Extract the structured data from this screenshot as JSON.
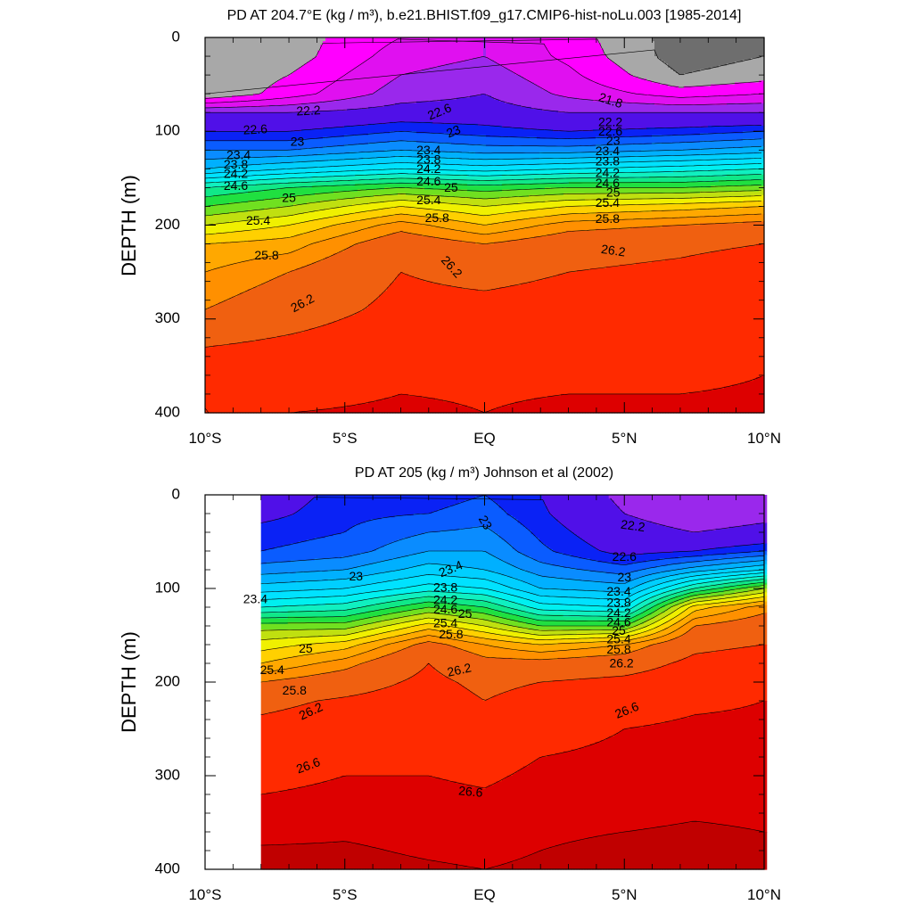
{
  "chart_data": [
    {
      "type": "heatmap",
      "title": "PD AT 204.7°E (kg / m³), b.e21.BHIST.f09_g17.CMIP6-hist-noLu.003 [1985-2014]",
      "ylabel": "DEPTH (m)",
      "xlabel": "",
      "x_ticks": [
        "10°S",
        "5°S",
        "EQ",
        "5°N",
        "10°N"
      ],
      "y_ticks": [
        "0",
        "100",
        "200",
        "300",
        "400"
      ],
      "xlim": [
        -10,
        10
      ],
      "ylim": [
        400,
        0
      ],
      "grid": false,
      "data_xrange": [
        -10,
        10
      ],
      "sections": [
        {
          "lat": -10,
          "depths": [
            0,
            20,
            40,
            60,
            80,
            100,
            120,
            140,
            160,
            180,
            200,
            220,
            250,
            290,
            330,
            395,
            400
          ],
          "values": [
            20.6,
            20.6,
            20.6,
            20.6,
            22.2,
            22.6,
            23.0,
            23.4,
            24.2,
            24.6,
            25.0,
            25.4,
            25.6,
            25.8,
            26.2,
            26.6,
            26.6
          ]
        },
        {
          "lat": -7,
          "depths": [
            0,
            20,
            40,
            60,
            80,
            100,
            120,
            140,
            160,
            180,
            200,
            220,
            250,
            290,
            330,
            380,
            400
          ],
          "values": [
            20.8,
            20.8,
            21.0,
            21.2,
            22.2,
            22.6,
            23.0,
            23.6,
            24.4,
            24.8,
            25.2,
            25.5,
            25.8,
            26.0,
            26.3,
            26.5,
            26.6
          ]
        },
        {
          "lat": -3,
          "depths": [
            0,
            20,
            40,
            60,
            80,
            100,
            120,
            140,
            160,
            180,
            200,
            220,
            250,
            290,
            330,
            360,
            400
          ],
          "values": [
            21.4,
            21.6,
            21.8,
            22.0,
            22.4,
            22.8,
            23.2,
            23.8,
            24.6,
            25.2,
            25.7,
            26.0,
            26.2,
            26.3,
            26.45,
            26.55,
            26.65
          ]
        },
        {
          "lat": 0,
          "depths": [
            0,
            20,
            40,
            60,
            80,
            100,
            120,
            140,
            160,
            180,
            200,
            220,
            250,
            290,
            330,
            360,
            400
          ],
          "values": [
            21.8,
            21.8,
            22.0,
            22.2,
            22.4,
            22.7,
            23.1,
            23.7,
            24.5,
            25.0,
            25.4,
            25.8,
            26.1,
            26.3,
            26.45,
            26.55,
            26.6
          ]
        },
        {
          "lat": 3,
          "depths": [
            0,
            20,
            40,
            60,
            80,
            100,
            120,
            140,
            160,
            180,
            200,
            220,
            250,
            290,
            330,
            360,
            400
          ],
          "values": [
            21.2,
            21.3,
            21.5,
            21.7,
            22.2,
            22.6,
            23.1,
            23.8,
            24.6,
            25.2,
            25.7,
            26.0,
            26.2,
            26.35,
            26.5,
            26.55,
            26.65
          ]
        },
        {
          "lat": 7,
          "depths": [
            0,
            20,
            40,
            60,
            80,
            100,
            120,
            140,
            160,
            180,
            200,
            220,
            250,
            290,
            330,
            360,
            400
          ],
          "values": [
            20.4,
            20.4,
            20.6,
            21.2,
            22.2,
            22.7,
            23.2,
            23.9,
            24.6,
            25.3,
            25.8,
            26.1,
            26.3,
            26.4,
            26.5,
            26.55,
            26.65
          ]
        },
        {
          "lat": 10,
          "depths": [
            0,
            20,
            40,
            60,
            80,
            100,
            120,
            140,
            160,
            180,
            200,
            220,
            250,
            290,
            330,
            360,
            400
          ],
          "values": [
            20.6,
            20.6,
            20.8,
            21.4,
            22.2,
            22.8,
            23.3,
            24.0,
            24.7,
            25.4,
            25.9,
            26.2,
            26.45,
            26.5,
            26.55,
            26.6,
            26.65
          ]
        }
      ],
      "contour_labels": [
        {
          "text": "22.2",
          "lat": -6.3,
          "depth": 79,
          "angle": -3
        },
        {
          "text": "22.6",
          "lat": -8.2,
          "depth": 99,
          "angle": -3
        },
        {
          "text": "23",
          "lat": -6.7,
          "depth": 112,
          "angle": 0
        },
        {
          "text": "23.4",
          "lat": -8.8,
          "depth": 126,
          "angle": 0
        },
        {
          "text": "23.8",
          "lat": -8.9,
          "depth": 136,
          "angle": 0
        },
        {
          "text": "24.2",
          "lat": -8.9,
          "depth": 146,
          "angle": 0
        },
        {
          "text": "24.6",
          "lat": -8.9,
          "depth": 159,
          "angle": 0
        },
        {
          "text": "25",
          "lat": -7.0,
          "depth": 172,
          "angle": 0
        },
        {
          "text": "25.4",
          "lat": -8.1,
          "depth": 196,
          "angle": 0
        },
        {
          "text": "25.8",
          "lat": -7.8,
          "depth": 233,
          "angle": 0
        },
        {
          "text": "26.2",
          "lat": -6.5,
          "depth": 284,
          "angle": -28
        },
        {
          "text": "22.6",
          "lat": -1.6,
          "depth": 80,
          "angle": -22
        },
        {
          "text": "23",
          "lat": -1.1,
          "depth": 101,
          "angle": -22
        },
        {
          "text": "23.4",
          "lat": -2.0,
          "depth": 121,
          "angle": 0
        },
        {
          "text": "23.8",
          "lat": -2.0,
          "depth": 131,
          "angle": 0
        },
        {
          "text": "24.2",
          "lat": -2.0,
          "depth": 141,
          "angle": 0
        },
        {
          "text": "24.6",
          "lat": -2.0,
          "depth": 154,
          "angle": 0
        },
        {
          "text": "25",
          "lat": -1.2,
          "depth": 161,
          "angle": 0
        },
        {
          "text": "25.4",
          "lat": -2.0,
          "depth": 174,
          "angle": 0
        },
        {
          "text": "25.8",
          "lat": -1.7,
          "depth": 193,
          "angle": 0
        },
        {
          "text": "26.2",
          "lat": -1.2,
          "depth": 245,
          "angle": 48
        },
        {
          "text": "21.8",
          "lat": 4.5,
          "depth": 68,
          "angle": 18
        },
        {
          "text": "22.2",
          "lat": 4.5,
          "depth": 91,
          "angle": 0
        },
        {
          "text": "22.6",
          "lat": 4.5,
          "depth": 101,
          "angle": 0
        },
        {
          "text": "23",
          "lat": 4.6,
          "depth": 111,
          "angle": 0
        },
        {
          "text": "23.4",
          "lat": 4.4,
          "depth": 122,
          "angle": 0
        },
        {
          "text": "23.8",
          "lat": 4.4,
          "depth": 133,
          "angle": 0
        },
        {
          "text": "24.2",
          "lat": 4.4,
          "depth": 145,
          "angle": 0
        },
        {
          "text": "24.6",
          "lat": 4.4,
          "depth": 156,
          "angle": 0
        },
        {
          "text": "25",
          "lat": 4.6,
          "depth": 166,
          "angle": 0
        },
        {
          "text": "25.4",
          "lat": 4.4,
          "depth": 177,
          "angle": 0
        },
        {
          "text": "25.8",
          "lat": 4.4,
          "depth": 194,
          "angle": 0
        },
        {
          "text": "26.2",
          "lat": 4.6,
          "depth": 228,
          "angle": 8
        }
      ]
    },
    {
      "type": "heatmap",
      "title": "PD AT 205 (kg / m³) Johnson et al (2002)",
      "ylabel": "DEPTH (m)",
      "xlabel": "",
      "x_ticks": [
        "10°S",
        "5°S",
        "EQ",
        "5°N",
        "10°N"
      ],
      "y_ticks": [
        "0",
        "100",
        "200",
        "300",
        "400"
      ],
      "xlim": [
        -10,
        10
      ],
      "ylim": [
        400,
        0
      ],
      "grid": false,
      "data_xrange": [
        -8,
        10
      ],
      "sections": [
        {
          "lat": -8,
          "depths": [
            0,
            20,
            40,
            60,
            80,
            100,
            120,
            140,
            160,
            180,
            200,
            220,
            250,
            280,
            320,
            360,
            380,
            400
          ],
          "values": [
            22.4,
            22.5,
            22.7,
            22.8,
            23.1,
            23.5,
            24.0,
            24.7,
            25.1,
            25.4,
            25.8,
            26.1,
            26.3,
            26.45,
            26.6,
            26.75,
            26.82,
            26.85
          ]
        },
        {
          "lat": -5,
          "depths": [
            0,
            20,
            40,
            60,
            80,
            100,
            120,
            140,
            160,
            180,
            200,
            220,
            250,
            280,
            320,
            360,
            380,
            400
          ],
          "values": [
            22.7,
            22.75,
            22.8,
            22.9,
            23.2,
            23.6,
            24.1,
            24.7,
            25.3,
            25.7,
            26.0,
            26.25,
            26.4,
            26.55,
            26.65,
            26.78,
            26.82,
            26.85
          ]
        },
        {
          "lat": -2,
          "depths": [
            0,
            20,
            40,
            60,
            80,
            100,
            120,
            140,
            160,
            180,
            200,
            220,
            250,
            280,
            320,
            360,
            380,
            400
          ],
          "values": [
            22.7,
            22.8,
            23.0,
            23.2,
            23.5,
            23.9,
            24.6,
            25.3,
            25.9,
            26.2,
            26.3,
            26.4,
            26.5,
            26.55,
            26.65,
            26.75,
            26.78,
            26.82
          ]
        },
        {
          "lat": 0,
          "depths": [
            0,
            20,
            40,
            60,
            80,
            100,
            120,
            140,
            160,
            180,
            200,
            220,
            250,
            280,
            320,
            360,
            380,
            400
          ],
          "values": [
            22.8,
            22.9,
            23.05,
            23.2,
            23.4,
            23.8,
            24.4,
            25.0,
            25.6,
            25.9,
            26.1,
            26.2,
            26.35,
            26.5,
            26.62,
            26.72,
            26.76,
            26.8
          ]
        },
        {
          "lat": 2,
          "depths": [
            0,
            20,
            40,
            60,
            80,
            100,
            120,
            140,
            160,
            180,
            200,
            220,
            250,
            280,
            320,
            360,
            380,
            400
          ],
          "values": [
            22.6,
            22.65,
            22.75,
            22.85,
            23.1,
            23.4,
            23.9,
            24.6,
            25.4,
            25.9,
            26.2,
            26.35,
            26.5,
            26.6,
            26.7,
            26.78,
            26.8,
            26.83
          ]
        },
        {
          "lat": 5,
          "depths": [
            0,
            20,
            40,
            60,
            80,
            100,
            120,
            140,
            160,
            180,
            200,
            220,
            250,
            280,
            320,
            360,
            380,
            400
          ],
          "values": [
            22.1,
            22.2,
            22.35,
            22.5,
            22.9,
            23.3,
            23.8,
            24.6,
            25.6,
            26.0,
            26.3,
            26.45,
            26.6,
            26.65,
            26.72,
            26.8,
            26.83,
            26.85
          ]
        },
        {
          "lat": 7.5,
          "depths": [
            0,
            20,
            40,
            60,
            80,
            100,
            120,
            140,
            160,
            180,
            200,
            220,
            250,
            280,
            320,
            360,
            380,
            400
          ],
          "values": [
            21.9,
            22.0,
            22.2,
            22.6,
            23.3,
            24.2,
            25.3,
            25.8,
            26.1,
            26.3,
            26.45,
            26.55,
            26.65,
            26.7,
            26.75,
            26.82,
            26.85,
            26.88
          ]
        },
        {
          "lat": 10,
          "depths": [
            0,
            20,
            40,
            60,
            80,
            100,
            120,
            140,
            160,
            180,
            200,
            220,
            250,
            280,
            320,
            360,
            380,
            400
          ],
          "values": [
            22.0,
            22.1,
            22.3,
            22.8,
            23.6,
            24.8,
            25.7,
            26.0,
            26.2,
            26.4,
            26.52,
            26.6,
            26.65,
            26.7,
            26.75,
            26.8,
            26.82,
            26.85
          ]
        }
      ],
      "contour_labels": [
        {
          "text": "22.2",
          "lat": 5.3,
          "depth": 34,
          "angle": 8
        },
        {
          "text": "22.6",
          "lat": 5.0,
          "depth": 67,
          "angle": 0
        },
        {
          "text": "23",
          "lat": -4.6,
          "depth": 88,
          "angle": 0
        },
        {
          "text": "23",
          "lat": 0.0,
          "depth": 30,
          "angle": 60
        },
        {
          "text": "23",
          "lat": 5.0,
          "depth": 89,
          "angle": 0
        },
        {
          "text": "23.4",
          "lat": -8.2,
          "depth": 112,
          "angle": 0
        },
        {
          "text": "23.4",
          "lat": -1.2,
          "depth": 80,
          "angle": -22
        },
        {
          "text": "23.4",
          "lat": 4.8,
          "depth": 104,
          "angle": 0
        },
        {
          "text": "23.8",
          "lat": -1.4,
          "depth": 100,
          "angle": 0
        },
        {
          "text": "23.8",
          "lat": 4.8,
          "depth": 116,
          "angle": 0
        },
        {
          "text": "24.2",
          "lat": -1.4,
          "depth": 113,
          "angle": 0
        },
        {
          "text": "24.2",
          "lat": 4.8,
          "depth": 127,
          "angle": 0
        },
        {
          "text": "24.6",
          "lat": -1.4,
          "depth": 123,
          "angle": 0
        },
        {
          "text": "24.6",
          "lat": 4.8,
          "depth": 137,
          "angle": 0
        },
        {
          "text": "25",
          "lat": -0.7,
          "depth": 128,
          "angle": 0
        },
        {
          "text": "25",
          "lat": 4.8,
          "depth": 146,
          "angle": 0
        },
        {
          "text": "25",
          "lat": -6.4,
          "depth": 165,
          "angle": 0
        },
        {
          "text": "25.4",
          "lat": -1.4,
          "depth": 138,
          "angle": 0
        },
        {
          "text": "25.4",
          "lat": 4.8,
          "depth": 155,
          "angle": 0
        },
        {
          "text": "25.4",
          "lat": -7.6,
          "depth": 188,
          "angle": 0
        },
        {
          "text": "25.8",
          "lat": -1.2,
          "depth": 150,
          "angle": 0
        },
        {
          "text": "25.8",
          "lat": 4.8,
          "depth": 166,
          "angle": 0
        },
        {
          "text": "25.8",
          "lat": -6.8,
          "depth": 210,
          "angle": 0
        },
        {
          "text": "26.2",
          "lat": -0.9,
          "depth": 188,
          "angle": -12
        },
        {
          "text": "26.2",
          "lat": 4.9,
          "depth": 181,
          "angle": 0
        },
        {
          "text": "26.2",
          "lat": -6.2,
          "depth": 232,
          "angle": -25
        },
        {
          "text": "26.6",
          "lat": -6.3,
          "depth": 290,
          "angle": -20
        },
        {
          "text": "26.6",
          "lat": -0.5,
          "depth": 318,
          "angle": 5
        },
        {
          "text": "26.6",
          "lat": 5.1,
          "depth": 231,
          "angle": -22
        }
      ]
    }
  ],
  "color_levels": [
    20.6,
    21.0,
    21.4,
    21.8,
    22.2,
    22.6,
    22.8,
    23.0,
    23.2,
    23.4,
    23.6,
    23.8,
    24.0,
    24.2,
    24.4,
    24.6,
    24.8,
    25.0,
    25.2,
    25.4,
    25.6,
    25.8,
    26.2,
    26.6,
    26.8
  ],
  "color_palette": [
    "#6e6e6e",
    "#a8a8a8",
    "#ff00ff",
    "#e010f0",
    "#9a28ec",
    "#5010e8",
    "#0a22f5",
    "#0a5cff",
    "#0a8cff",
    "#00b0ff",
    "#00cfff",
    "#00e2ff",
    "#00f0f0",
    "#10f0c0",
    "#10e888",
    "#20e040",
    "#70e020",
    "#c0e010",
    "#f0f000",
    "#ffd000",
    "#ffa800",
    "#ff9000",
    "#f06010",
    "#ff2a00",
    "#dd0000",
    "#c00000"
  ]
}
